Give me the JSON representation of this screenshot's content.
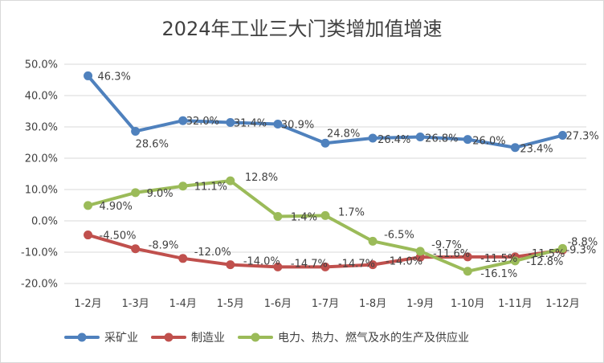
{
  "chart_data": {
    "type": "line",
    "title": "2024年工业三大门类增加值增速",
    "xlabel": "",
    "ylabel": "",
    "categories": [
      "1-2月",
      "1-3月",
      "1-4月",
      "1-5月",
      "1-6月",
      "1-7月",
      "1-8月",
      "1-9月",
      "1-10月",
      "1-11月",
      "1-12月"
    ],
    "ylim": [
      -20,
      50
    ],
    "yticks": [
      "50.0%",
      "40.0%",
      "30.0%",
      "20.0%",
      "10.0%",
      "0.0%",
      "-10.0%",
      "-20.0%"
    ],
    "grid": true,
    "legend_position": "bottom",
    "series": [
      {
        "name": "采矿业",
        "color": "#4f81bd",
        "values": [
          46.3,
          28.6,
          32.0,
          31.4,
          30.9,
          24.8,
          26.4,
          26.8,
          26.0,
          23.4,
          27.3
        ],
        "labels": [
          "46.3%",
          "28.6%",
          "32.0%",
          "31.4%",
          "30.9%",
          "24.8%",
          "26.4%",
          "26.8%",
          "26.0%",
          "23.4%",
          "27.3%"
        ]
      },
      {
        "name": "制造业",
        "color": "#c0504d",
        "values": [
          -4.5,
          -8.9,
          -12.0,
          -14.0,
          -14.7,
          -14.7,
          -14.0,
          -11.6,
          -11.5,
          -11.5,
          -9.3
        ],
        "labels": [
          "-4.50%",
          "-8.9%",
          "-12.0%",
          "-14.0%",
          "-14.7%",
          "-14.7%",
          "-14.0%",
          "-11.6%",
          "-11.5%",
          "-11.5%",
          "-9.3%"
        ]
      },
      {
        "name": "电力、热力、燃气及水的生产及供应业",
        "color": "#9bbb59",
        "values": [
          4.9,
          9.0,
          11.1,
          12.8,
          1.4,
          1.7,
          -6.5,
          -9.7,
          -16.1,
          -12.8,
          -8.8
        ],
        "labels": [
          "4.90%",
          "9.0%",
          "11.1%",
          "12.8%",
          "1.4%",
          "1.7%",
          "-6.5%",
          "-9.7%",
          "-16.1%",
          "-12.8%",
          "-8.8%"
        ]
      }
    ]
  }
}
